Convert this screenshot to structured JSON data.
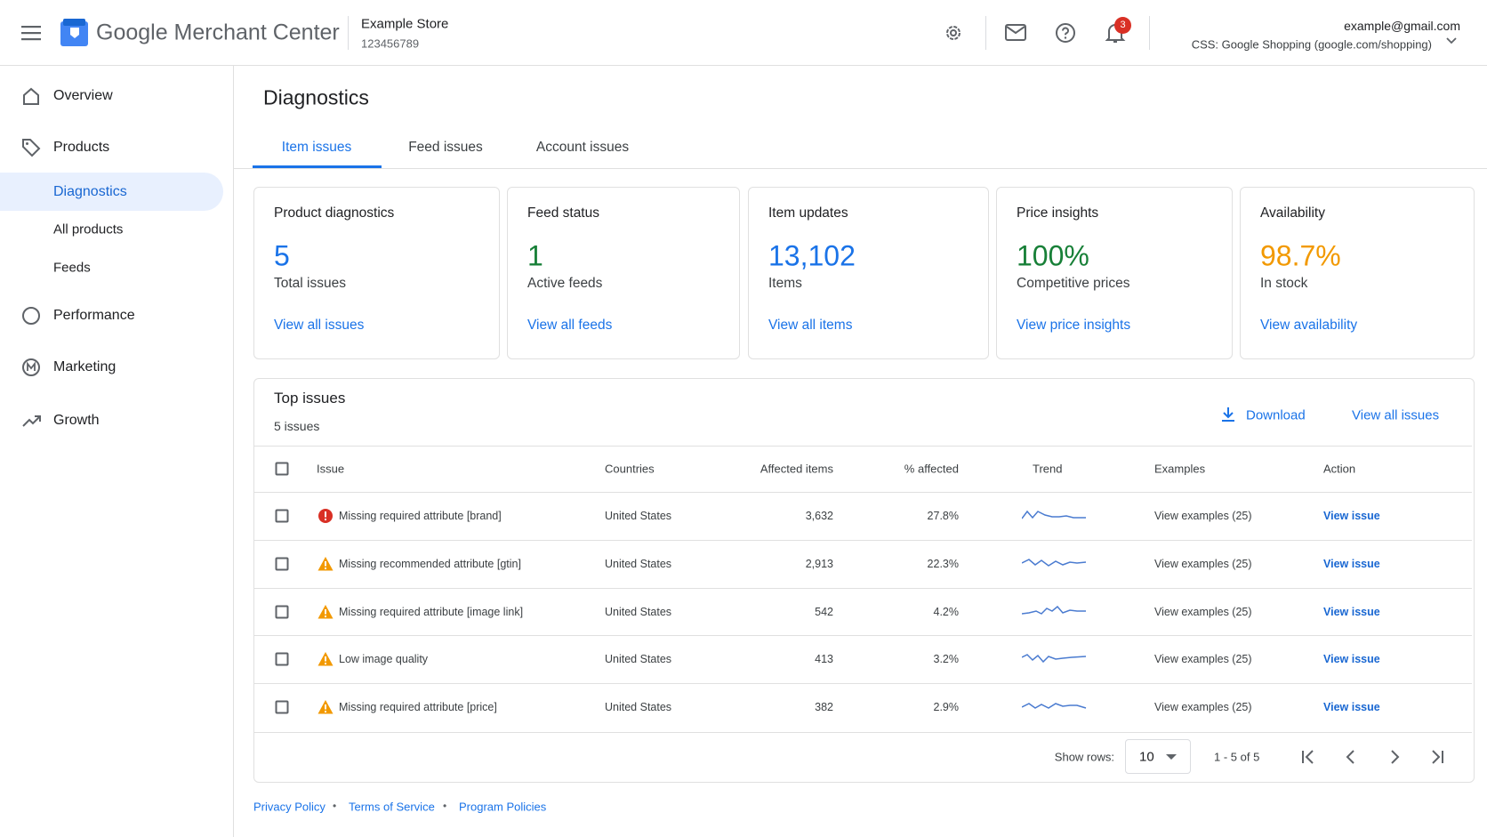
{
  "header": {
    "product_name": "Google Merchant Center",
    "store_name": "Example Store",
    "store_id": "123456789",
    "notification_count": "3",
    "account_email": "example@gmail.com",
    "account_program": "CSS: Google Shopping (google.com/shopping)"
  },
  "sidebar": {
    "items": [
      {
        "label": "Overview"
      },
      {
        "label": "Products",
        "children": [
          "Diagnostics",
          "All products",
          "Feeds"
        ]
      },
      {
        "label": "Performance"
      },
      {
        "label": "Marketing"
      },
      {
        "label": "Growth"
      }
    ]
  },
  "page": {
    "title": "Diagnostics",
    "tabs": [
      "Item issues",
      "Feed issues",
      "Account issues"
    ]
  },
  "cards": [
    {
      "title": "Product diagnostics",
      "value": "5",
      "caption": "Total issues",
      "link": "View all issues",
      "color": "#1a73e8"
    },
    {
      "title": "Feed status",
      "value": "1",
      "caption": "Active feeds",
      "link": "View all feeds",
      "color": "#188038"
    },
    {
      "title": "Item updates",
      "value": "13,102",
      "caption": "Items",
      "link": "View all items",
      "color": "#1a73e8"
    },
    {
      "title": "Price insights",
      "value": "100%",
      "caption": "Competitive prices",
      "link": "View price insights",
      "color": "#188038"
    },
    {
      "title": "Availability",
      "value": "98.7%",
      "caption": "In stock",
      "link": "View availability",
      "color": "#f29900"
    }
  ],
  "top_issues": {
    "title": "Top issues",
    "subtitle": "5 issues",
    "download": "Download",
    "view_all": "View all issues",
    "columns": [
      "Issue",
      "Countries",
      "Affected items",
      "% affected",
      "Trend",
      "Examples",
      "Action"
    ],
    "rows": [
      {
        "severity": "error",
        "issue": "Missing required attribute [brand]",
        "country": "United States",
        "affected_items": "3,632",
        "percent_affected": "27.8%",
        "examples": "View examples (25)",
        "action": "View issue"
      },
      {
        "severity": "warning",
        "issue": "Missing recommended attribute [gtin]",
        "country": "United States",
        "affected_items": "2,913",
        "percent_affected": "22.3%",
        "examples": "View examples (25)",
        "action": "View issue"
      },
      {
        "severity": "warning",
        "issue": "Missing required attribute [image link]",
        "country": "United States",
        "affected_items": "542",
        "percent_affected": "4.2%",
        "examples": "View examples (25)",
        "action": "View issue"
      },
      {
        "severity": "warning",
        "issue": "Low image quality",
        "country": "United States",
        "affected_items": "413",
        "percent_affected": "3.2%",
        "examples": "View examples (25)",
        "action": "View issue"
      },
      {
        "severity": "warning",
        "issue": "Missing required attribute [price]",
        "country": "United States",
        "affected_items": "382",
        "percent_affected": "2.9%",
        "examples": "View examples (25)",
        "action": "View issue"
      }
    ],
    "pagination": {
      "label": "Show rows:",
      "rows_per_page": "10",
      "range": "1 - 5 of 5"
    }
  },
  "footer": {
    "links": [
      "Privacy Policy",
      "Terms of Service",
      "Program Policies"
    ]
  }
}
